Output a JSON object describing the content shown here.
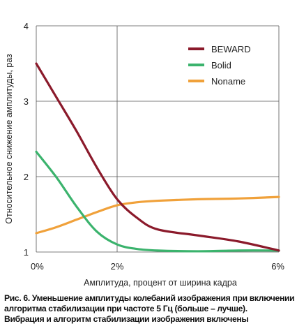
{
  "chart_data": {
    "type": "line",
    "x": [
      0,
      1,
      2,
      3,
      4,
      5,
      6
    ],
    "x_tick_labels": [
      "0%",
      "2%",
      "6%"
    ],
    "x_tick_values": [
      0,
      2,
      6
    ],
    "y_tick_values": [
      1,
      2,
      3,
      4
    ],
    "y_tick_labels": [
      "1",
      "2",
      "3",
      "4"
    ],
    "xlim": [
      0,
      6
    ],
    "ylim": [
      1,
      4
    ],
    "xlabel": "Амплитуда, процент от ширина кадра",
    "ylabel": "Относительное снижение амплитуды, раз",
    "grid": true,
    "legend_position": "top-right",
    "series": [
      {
        "name": "BEWARD",
        "color": "#8b1a2b",
        "x": [
          0,
          0.5,
          1,
          1.5,
          2,
          2.5,
          3,
          4,
          5,
          6
        ],
        "values": [
          3.5,
          3.05,
          2.6,
          2.12,
          1.7,
          1.45,
          1.3,
          1.22,
          1.14,
          1.02
        ]
      },
      {
        "name": "Bolid",
        "color": "#3bb36d",
        "x": [
          0,
          0.5,
          1,
          1.5,
          2,
          2.5,
          3,
          4,
          5,
          6
        ],
        "values": [
          2.33,
          1.99,
          1.6,
          1.27,
          1.1,
          1.04,
          1.02,
          1.01,
          1.02,
          1.02
        ]
      },
      {
        "name": "Noname",
        "color": "#f0a13a",
        "x": [
          0,
          0.5,
          1,
          1.5,
          2,
          2.5,
          3,
          4,
          5,
          6
        ],
        "values": [
          1.25,
          1.33,
          1.43,
          1.53,
          1.62,
          1.66,
          1.68,
          1.7,
          1.71,
          1.73
        ]
      }
    ]
  },
  "caption": {
    "line1": "Рис. 6. Уменьшение амплитуды колебаний изображения при включении",
    "line2": "алгоритма стабилизации при частоте 5 Гц (больше – лучше).",
    "line3": "Вибрация и алгоритм стабилизации изображения включены"
  }
}
